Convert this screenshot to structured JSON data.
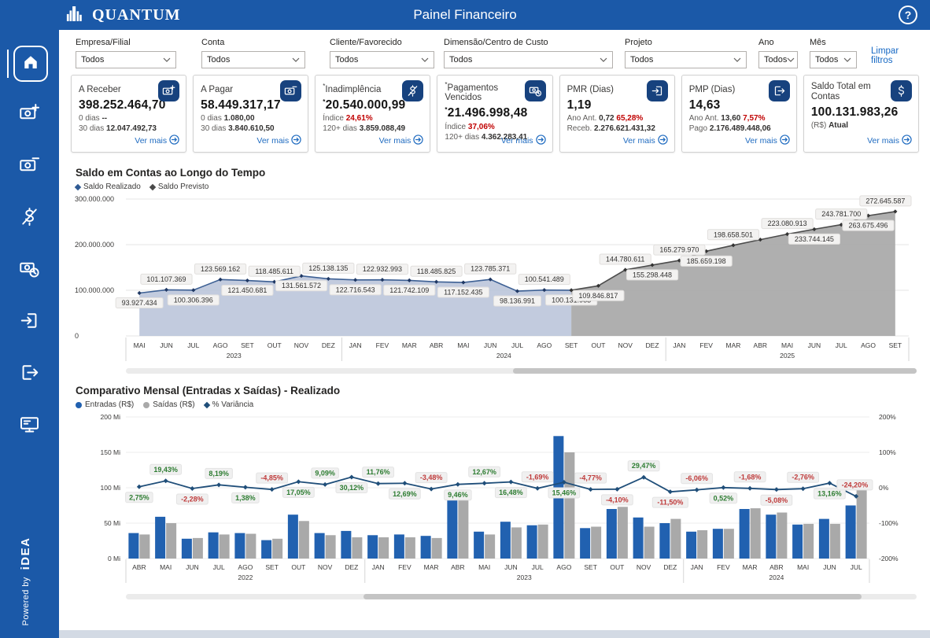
{
  "header": {
    "logo_text": "QUANTUM",
    "title": "Painel Financeiro",
    "help_glyph": "?"
  },
  "sidebar": {
    "powered_by": "Powered by",
    "brand": "iDEA",
    "items": [
      "money-plus",
      "money-minus",
      "money-off",
      "money-clock",
      "box-arrow-in",
      "box-arrow-out",
      "monitor"
    ]
  },
  "filters": {
    "clear_label": "Limpar filtros",
    "items": [
      {
        "label": "Empresa/Filial",
        "value": "Todos"
      },
      {
        "label": "Conta",
        "value": "Todos"
      },
      {
        "label": "Cliente/Favorecido",
        "value": "Todos"
      },
      {
        "label": "Dimensão/Centro de Custo",
        "value": "Todos"
      },
      {
        "label": "Projeto",
        "value": "Todos"
      },
      {
        "label": "Ano",
        "value": "Todos"
      },
      {
        "label": "Mês",
        "value": "Todos"
      }
    ]
  },
  "cards_more_label": "Ver mais",
  "cards": [
    {
      "title": "A Receber",
      "icon": "money-plus",
      "value": "398.252.464,70",
      "lines": [
        [
          {
            "t": "0 dias ",
            "s": "m"
          },
          {
            "t": "--",
            "s": "b"
          }
        ],
        [
          {
            "t": "30 dias ",
            "s": "m"
          },
          {
            "t": "12.047.492,73",
            "s": "b"
          }
        ]
      ]
    },
    {
      "title": "A Pagar",
      "icon": "money-minus",
      "value": "58.449.317,17",
      "lines": [
        [
          {
            "t": "0 dias ",
            "s": "m"
          },
          {
            "t": "1.080,00",
            "s": "b"
          }
        ],
        [
          {
            "t": "30 dias ",
            "s": "m"
          },
          {
            "t": "3.840.610,50",
            "s": "b"
          }
        ]
      ]
    },
    {
      "title": "Inadimplência",
      "marker": "*",
      "icon": "money-off",
      "value": "20.540.000,99",
      "lines": [
        [
          {
            "t": "Índice ",
            "s": "m"
          },
          {
            "t": "24,61%",
            "s": "r"
          }
        ],
        [
          {
            "t": "120+ dias ",
            "s": "m"
          },
          {
            "t": "3.859.088,49",
            "s": "b"
          }
        ]
      ]
    },
    {
      "title": "Pagamentos Vencidos",
      "marker": "*",
      "icon": "money-clock",
      "value": "21.496.998,48",
      "lines": [
        [
          {
            "t": "Índice ",
            "s": "m"
          },
          {
            "t": "37,06%",
            "s": "r"
          }
        ],
        [
          {
            "t": "120+ dias ",
            "s": "m"
          },
          {
            "t": "4.362.283,41",
            "s": "b"
          }
        ]
      ]
    },
    {
      "title": "PMR (Dias)",
      "icon": "box-arrow-in",
      "value": "1,19",
      "lines": [
        [
          {
            "t": "Ano Ant. ",
            "s": "m"
          },
          {
            "t": "0,72 ",
            "s": "b"
          },
          {
            "t": "65,28%",
            "s": "r"
          }
        ],
        [
          {
            "t": "Receb. ",
            "s": "m"
          },
          {
            "t": "2.276.621.431,32",
            "s": "b"
          }
        ]
      ]
    },
    {
      "title": "PMP (Dias)",
      "icon": "box-arrow-out",
      "value": "14,63",
      "lines": [
        [
          {
            "t": "Ano Ant. ",
            "s": "m"
          },
          {
            "t": "13,60 ",
            "s": "b"
          },
          {
            "t": "7,57%",
            "s": "r"
          }
        ],
        [
          {
            "t": "Pago ",
            "s": "m"
          },
          {
            "t": "2.176.489.448,06",
            "s": "b"
          }
        ]
      ]
    },
    {
      "title": "Saldo Total em Contas",
      "icon": "dollar",
      "value": "100.131.983,26",
      "lines": [
        [
          {
            "t": "(R$) ",
            "s": "m"
          },
          {
            "t": "Atual",
            "s": "b"
          }
        ]
      ]
    }
  ],
  "chart_data": [
    {
      "type": "area",
      "title": "Saldo em Contas ao Longo do Tempo",
      "legend": [
        {
          "name": "Saldo Realizado",
          "color": "#2f5a93",
          "marker": "diamond"
        },
        {
          "name": "Saldo Previsto",
          "color": "#4a4a4a",
          "marker": "diamond"
        }
      ],
      "ylim": [
        0,
        300000000
      ],
      "yticks": [
        "300.000.000",
        "200.000.000",
        "100.000.000",
        "0"
      ],
      "months": [
        "MAI",
        "JUN",
        "JUL",
        "AGO",
        "SET",
        "OUT",
        "NOV",
        "DEZ",
        "JAN",
        "FEV",
        "MAR",
        "ABR",
        "MAI",
        "JUN",
        "JUL",
        "AGO",
        "SET",
        "OUT",
        "NOV",
        "DEZ",
        "JAN",
        "FEV",
        "MAR",
        "ABR",
        "MAI",
        "JUN",
        "JUL",
        "AGO",
        "SET"
      ],
      "year_labels": [
        {
          "text": "2023",
          "span": [
            0,
            7
          ]
        },
        {
          "text": "2024",
          "span": [
            8,
            19
          ]
        },
        {
          "text": "2025",
          "span": [
            20,
            28
          ]
        }
      ],
      "series": [
        {
          "name": "Saldo Realizado",
          "start_index": 0,
          "color": "#3d6094",
          "marker_color": "#1f3864",
          "fill": "#b7c2d8",
          "fill_opacity": 0.85,
          "values": [
            93927434,
            101107369,
            100306396,
            123569162,
            121450681,
            118485611,
            131561572,
            125138135,
            122716543,
            122932993,
            121742109,
            118485825,
            117152435,
            123785371,
            98136991,
            100541489,
            100131983
          ],
          "labels": [
            "93.927.434",
            "101.107.369",
            "100.306.396",
            "123.569.162",
            "121.450.681",
            "118.485.611",
            "131.561.572",
            "125.138.135",
            "122.716.543",
            "122.932.993",
            "121.742.109",
            "118.485.825",
            "117.152.435",
            "123.785.371",
            "98.136.991",
            "100.541.489",
            "100.131.983"
          ]
        },
        {
          "name": "Saldo Previsto",
          "start_index": 16,
          "color": "#4d4d4d",
          "marker_color": "#333333",
          "fill": "#a8a8a8",
          "fill_opacity": 0.92,
          "values": [
            100131983,
            109846817,
            144780611,
            155298448,
            165279970,
            185659198,
            198658501,
            211000000,
            223080913,
            233744145,
            243781700,
            263675496,
            272645587
          ],
          "labels": [
            null,
            "109.846.817",
            "144.780.611",
            "155.298.448",
            "165.279.970",
            "185.659.198",
            "198.658.501",
            null,
            "223.080.913",
            "233.744.145",
            "243.781.700",
            "263.675.496",
            "272.645.587"
          ]
        }
      ]
    },
    {
      "type": "bar",
      "title": "Comparativo Mensal (Entradas x Saídas) - Realizado",
      "legend": [
        {
          "name": "Entradas (R$)",
          "color": "#2161b0",
          "marker": "circle"
        },
        {
          "name": "Saídas (R$)",
          "color": "#a9a9a9",
          "marker": "circle"
        },
        {
          "name": "% Variância",
          "color": "#1f4e79",
          "marker": "diamond"
        }
      ],
      "colors": {
        "entradas": "#2161b0",
        "saidas": "#a9a9a9",
        "variancia": "#1f4e79",
        "positive": "#2e7d32",
        "negative": "#bf3a3a"
      },
      "left_axis": {
        "ticks": [
          "200 Mi",
          "150 Mi",
          "100 Mi",
          "50 Mi",
          "0 Mi"
        ],
        "lim": [
          0,
          200
        ]
      },
      "right_axis": {
        "ticks": [
          "200%",
          "100%",
          "0%",
          "-100%",
          "-200%"
        ],
        "lim": [
          -200,
          200
        ]
      },
      "months": [
        "ABR",
        "MAI",
        "JUN",
        "JUL",
        "AGO",
        "SET",
        "OUT",
        "NOV",
        "DEZ",
        "JAN",
        "FEV",
        "MAR",
        "ABR",
        "MAI",
        "JUN",
        "JUL",
        "AGO",
        "SET",
        "OUT",
        "NOV",
        "DEZ",
        "JAN",
        "FEV",
        "MAR",
        "ABR",
        "MAI",
        "JUN",
        "JUL"
      ],
      "year_labels": [
        {
          "text": "2022",
          "span": [
            0,
            8
          ]
        },
        {
          "text": "2023",
          "span": [
            9,
            20
          ]
        },
        {
          "text": "2024",
          "span": [
            21,
            27
          ]
        }
      ],
      "entradas_mi": [
        36,
        59,
        28,
        37,
        36,
        26,
        62,
        36,
        39,
        33,
        34,
        32,
        93,
        38,
        52,
        47,
        173,
        43,
        70,
        58,
        50,
        38,
        42,
        70,
        62,
        48,
        56,
        75
      ],
      "saidas_mi": [
        34,
        50,
        29,
        34,
        35,
        28,
        53,
        33,
        30,
        30,
        30,
        29,
        85,
        34,
        44,
        48,
        150,
        45,
        73,
        45,
        56,
        40,
        42,
        71,
        65,
        49,
        49,
        99
      ],
      "variancia_pct": [
        2.75,
        19.43,
        -2.28,
        8.19,
        1.38,
        -4.85,
        17.05,
        9.09,
        30.12,
        11.76,
        12.69,
        -3.48,
        9.46,
        12.67,
        16.48,
        -1.69,
        15.46,
        -4.77,
        -4.1,
        29.47,
        -11.5,
        -6.06,
        0.52,
        -1.68,
        -5.08,
        -2.76,
        13.16,
        -24.2
      ],
      "variancia_labels": [
        "2,75%",
        "19,43%",
        "-2,28%",
        "8,19%",
        "1,38%",
        "-4,85%",
        "17,05%",
        "9,09%",
        "30,12%",
        "11,76%",
        "12,69%",
        "-3,48%",
        "9,46%",
        "12,67%",
        "16,48%",
        "-1,69%",
        "15,46%",
        "-4,77%",
        "-4,10%",
        "29,47%",
        "-11,50%",
        "-6,06%",
        "0,52%",
        "-1,68%",
        "-5,08%",
        "-2,76%",
        "13,16%",
        "-24,20%"
      ]
    }
  ]
}
